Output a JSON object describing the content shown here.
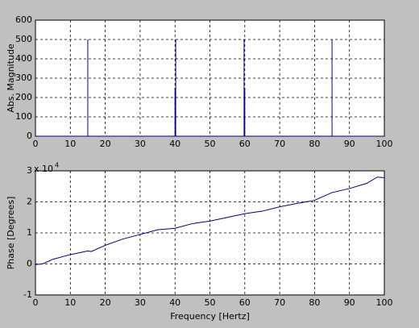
{
  "chart_data": [
    {
      "type": "line",
      "ylabel": "Abs. Magnitude",
      "x": [
        0,
        15,
        15,
        15,
        40,
        40,
        40,
        40.2,
        40.2,
        40.2,
        59.8,
        59.8,
        59.8,
        60,
        60,
        60,
        85,
        85,
        85,
        100
      ],
      "series": [
        {
          "color": "#000080",
          "values": [
            0,
            0,
            500,
            0,
            0,
            250,
            0,
            0,
            500,
            0,
            0,
            500,
            0,
            0,
            250,
            0,
            0,
            500,
            0,
            0
          ]
        }
      ],
      "xlim": [
        0,
        100
      ],
      "xticks": [
        0,
        10,
        20,
        30,
        40,
        50,
        60,
        70,
        80,
        90,
        100
      ],
      "ylim": [
        0,
        600
      ],
      "yticks": [
        0,
        100,
        200,
        300,
        400,
        500,
        600
      ],
      "grid": true
    },
    {
      "type": "line",
      "xlabel": "Frequency [Hertz]",
      "ylabel": "Phase [Degrees]",
      "y_multiplier": "x 10",
      "y_multiplier_exponent": "4",
      "x": [
        0,
        2,
        5,
        10,
        15,
        16,
        20,
        25,
        30,
        35,
        40,
        45,
        50,
        55,
        60,
        65,
        70,
        75,
        80,
        85,
        90,
        95,
        98,
        100
      ],
      "series": [
        {
          "color": "#000080",
          "values": [
            -0.02,
            0,
            0.15,
            0.3,
            0.42,
            0.4,
            0.6,
            0.8,
            0.95,
            1.1,
            1.15,
            1.3,
            1.38,
            1.5,
            1.62,
            1.7,
            1.84,
            1.95,
            2.05,
            2.3,
            2.43,
            2.6,
            2.8,
            2.78
          ]
        }
      ],
      "xlim": [
        0,
        100
      ],
      "xticks": [
        0,
        10,
        20,
        30,
        40,
        50,
        60,
        70,
        80,
        90,
        100
      ],
      "ylim": [
        -1,
        3
      ],
      "yticks": [
        -1,
        0,
        1,
        2,
        3
      ],
      "grid": true
    }
  ]
}
